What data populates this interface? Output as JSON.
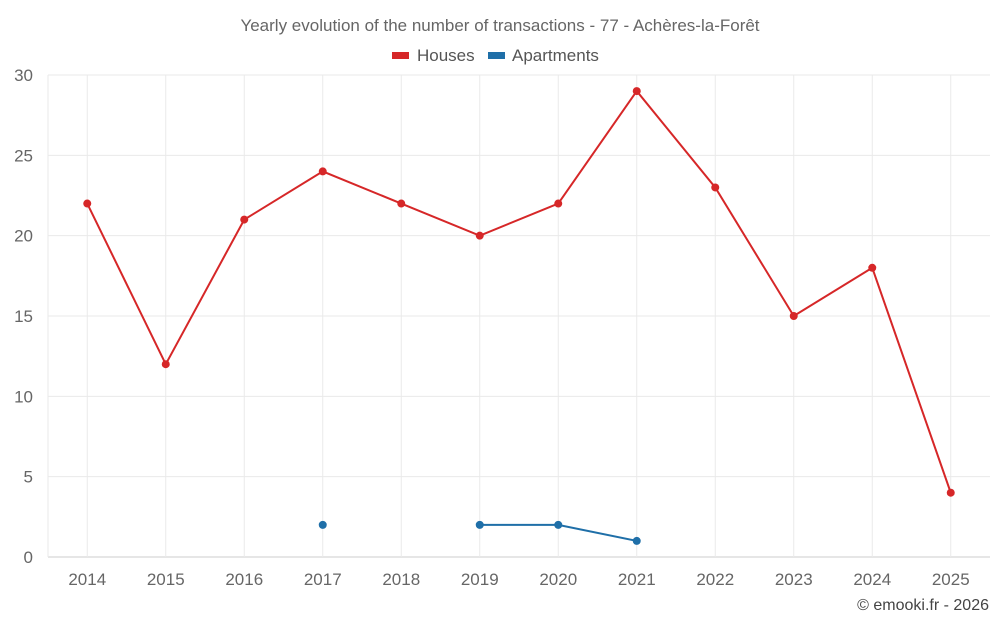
{
  "chart_data": {
    "type": "line",
    "title": "Yearly evolution of the number of transactions - 77 - Achères-la-Forêt",
    "categories": [
      "2014",
      "2015",
      "2016",
      "2017",
      "2018",
      "2019",
      "2020",
      "2021",
      "2022",
      "2023",
      "2024",
      "2025"
    ],
    "series": [
      {
        "name": "Houses",
        "color": "#d62728",
        "values": [
          22,
          12,
          21,
          24,
          22,
          20,
          22,
          29,
          23,
          15,
          18,
          4
        ]
      },
      {
        "name": "Apartments",
        "color": "#1f6fa8",
        "values": [
          null,
          null,
          null,
          2,
          null,
          2,
          2,
          1,
          null,
          null,
          null,
          null
        ]
      }
    ],
    "ylim": [
      0,
      30
    ],
    "yticks": [
      "0",
      "5",
      "10",
      "15",
      "20",
      "25",
      "30"
    ],
    "grid": true,
    "legend_position": "top-center",
    "credit": "© emooki.fr - 2026"
  }
}
